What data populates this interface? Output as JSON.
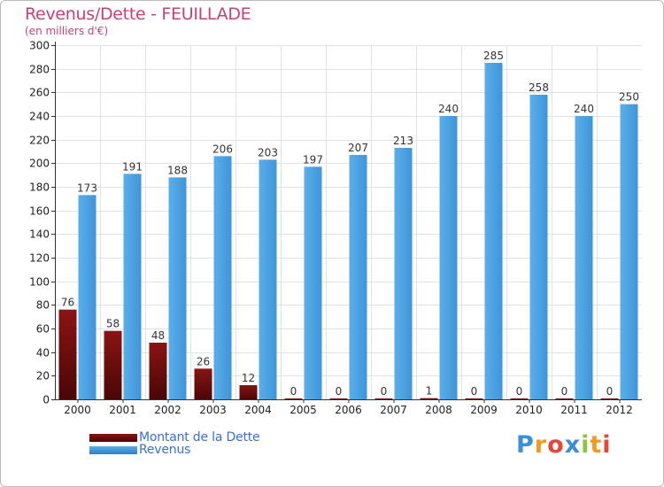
{
  "title": "Revenus/Dette - FEUILLADE",
  "subtitle": "(en milliers d'€)",
  "colors": {
    "title": "#c8407a",
    "dette": "#8a1414",
    "dette_dark": "#4a0606",
    "revenus": "#5aaeea",
    "revenus_dark": "#2f7fc4",
    "legend_text": "#3a6fd6",
    "grid": "#e2e2e2",
    "axis": "#333333"
  },
  "chart_data": {
    "type": "bar",
    "title": "Revenus/Dette - FEUILLADE",
    "ylabel": "(en milliers d'€)",
    "xlabel": "",
    "categories": [
      "2000",
      "2001",
      "2002",
      "2003",
      "2004",
      "2005",
      "2006",
      "2007",
      "2008",
      "2009",
      "2010",
      "2011",
      "2012"
    ],
    "series": [
      {
        "name": "Montant de la Dette",
        "values": [
          76,
          58,
          48,
          26,
          12,
          0,
          0,
          0,
          1,
          0,
          0,
          0,
          0
        ]
      },
      {
        "name": "Revenus",
        "values": [
          173,
          191,
          188,
          206,
          203,
          197,
          207,
          213,
          240,
          285,
          258,
          240,
          250
        ]
      }
    ],
    "ylim": [
      0,
      300
    ],
    "yticks": [
      0,
      20,
      40,
      60,
      80,
      100,
      120,
      140,
      160,
      180,
      200,
      220,
      240,
      260,
      280,
      300
    ],
    "grid": true,
    "legend": "bottom-left"
  },
  "legend": {
    "items": [
      {
        "label": "Montant de la Dette",
        "swatch": "dette"
      },
      {
        "label": "Revenus",
        "swatch": "revenus"
      }
    ]
  },
  "logo": {
    "letters": [
      "P",
      "r",
      "o",
      "x",
      "i",
      "t",
      "i"
    ],
    "colors": [
      "#3a8fd8",
      "#f39a1e",
      "#e8453c",
      "#3a8fd8",
      "#8cc63f",
      "#f39a1e",
      "#e8453c"
    ]
  }
}
